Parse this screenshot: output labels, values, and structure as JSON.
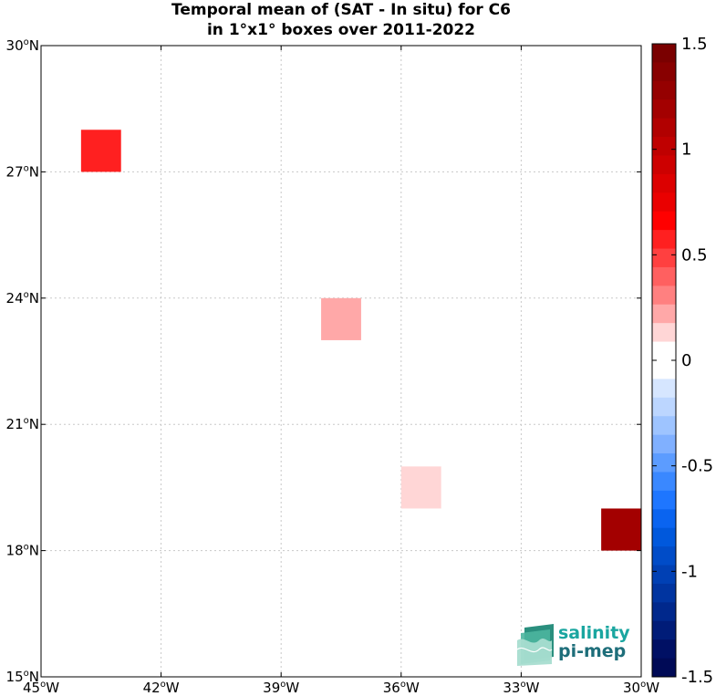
{
  "chart_data": {
    "type": "heatmap",
    "title_lines": [
      "Temporal mean of (SAT - In situ) for C6",
      "in 1°x1° boxes over 2011-2022"
    ],
    "x_ticks": [
      {
        "value": -45,
        "label": "45°W"
      },
      {
        "value": -42,
        "label": "42°W"
      },
      {
        "value": -39,
        "label": "39°W"
      },
      {
        "value": -36,
        "label": "36°W"
      },
      {
        "value": -33,
        "label": "33°W"
      },
      {
        "value": -30,
        "label": "30°W"
      }
    ],
    "y_ticks": [
      {
        "value": 15,
        "label": "15°N"
      },
      {
        "value": 18,
        "label": "18°N"
      },
      {
        "value": 21,
        "label": "21°N"
      },
      {
        "value": 24,
        "label": "24°N"
      },
      {
        "value": 27,
        "label": "27°N"
      },
      {
        "value": 30,
        "label": "30°N"
      }
    ],
    "xlim": [
      -45,
      -30
    ],
    "ylim": [
      15,
      30
    ],
    "grid": true,
    "cells": [
      {
        "lon_min": -44,
        "lon_max": -43,
        "lat_min": 27,
        "lat_max": 28,
        "value": 0.55
      },
      {
        "lon_min": -38,
        "lon_max": -37,
        "lat_min": 23,
        "lat_max": 24,
        "value": 0.25
      },
      {
        "lon_min": -36,
        "lon_max": -35,
        "lat_min": 19,
        "lat_max": 20,
        "value": 0.15
      },
      {
        "lon_min": -31,
        "lon_max": -30,
        "lat_min": 18,
        "lat_max": 19,
        "value": 1.15
      }
    ],
    "colorbar": {
      "range": [
        -1.5,
        1.5
      ],
      "ticks": [
        {
          "value": 1.5,
          "label": "1.5"
        },
        {
          "value": 1,
          "label": "1"
        },
        {
          "value": 0.5,
          "label": "0.5"
        },
        {
          "value": 0,
          "label": "0"
        },
        {
          "value": -0.5,
          "label": "-0.5"
        },
        {
          "value": -1,
          "label": "-1"
        },
        {
          "value": -1.5,
          "label": "-1.5"
        }
      ],
      "colors_top_to_bottom": [
        "#7a0000",
        "#880000",
        "#950000",
        "#a30000",
        "#b10000",
        "#bf0000",
        "#cd0000",
        "#dc0000",
        "#ea0000",
        "#ff0000",
        "#ff2020",
        "#ff4040",
        "#ff6060",
        "#ff8080",
        "#ffa8a8",
        "#ffd6d6",
        "#ffffff",
        "#ffffff",
        "#d6e6ff",
        "#bcd6ff",
        "#9ec4ff",
        "#80b0ff",
        "#5c9cff",
        "#3a88ff",
        "#1e76ff",
        "#0a64f0",
        "#0058dc",
        "#004cc8",
        "#0040b4",
        "#0034a0",
        "#00288c",
        "#001c78",
        "#001064",
        "#000a56"
      ]
    },
    "logo": {
      "line1": "salinity",
      "line2": "pi-mep"
    }
  }
}
